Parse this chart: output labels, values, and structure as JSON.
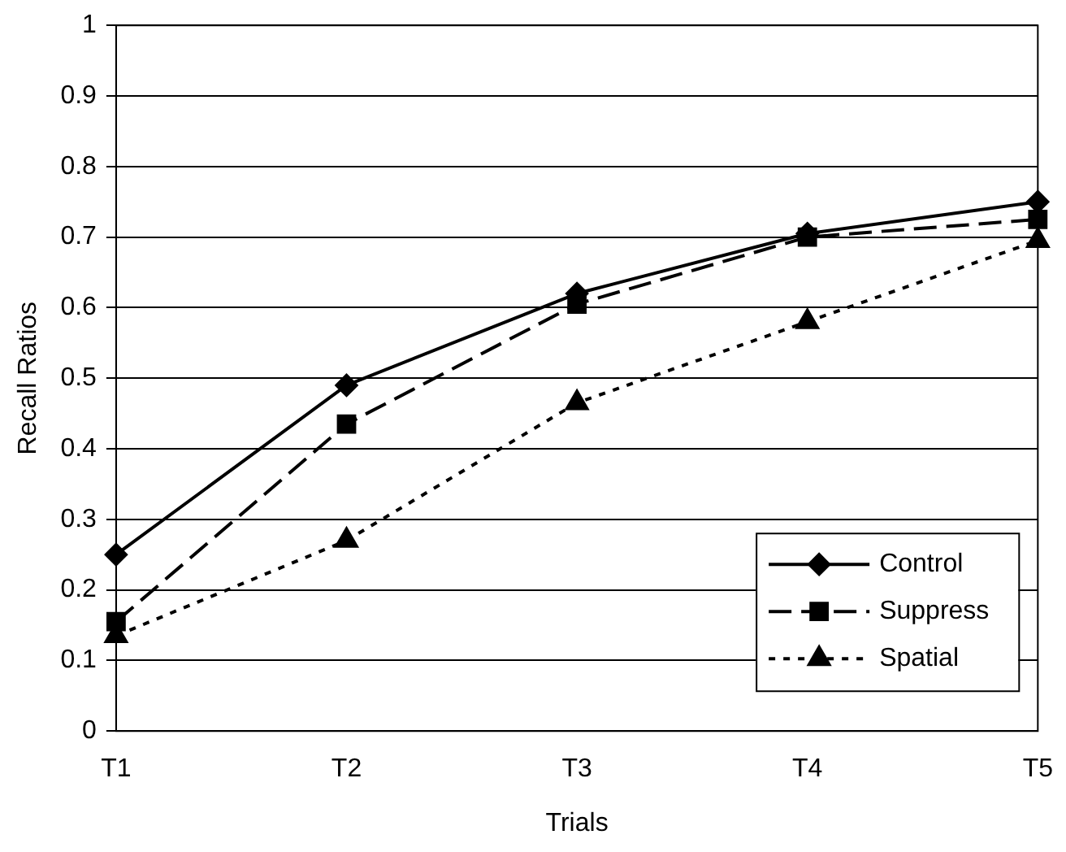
{
  "chart_data": {
    "type": "line",
    "xlabel": "Trials",
    "ylabel": "Recall Ratios",
    "categories": [
      "T1",
      "T2",
      "T3",
      "T4",
      "T5"
    ],
    "series": [
      {
        "name": "Control",
        "color": "#000000",
        "marker": "diamond",
        "line_style": "solid",
        "values": [
          0.25,
          0.49,
          0.62,
          0.705,
          0.75
        ]
      },
      {
        "name": "Suppress",
        "color": "#000000",
        "marker": "square",
        "line_style": "dashed",
        "values": [
          0.155,
          0.435,
          0.605,
          0.7,
          0.725
        ]
      },
      {
        "name": "Spatial",
        "color": "#000000",
        "marker": "triangle",
        "line_style": "dotted",
        "values": [
          0.135,
          0.27,
          0.465,
          0.58,
          0.695
        ]
      }
    ],
    "ylim": [
      0,
      1
    ],
    "yticks": [
      0,
      0.1,
      0.2,
      0.3,
      0.4,
      0.5,
      0.6,
      0.7,
      0.8,
      0.9,
      1
    ],
    "grid": "y",
    "legend": "bottom right"
  }
}
